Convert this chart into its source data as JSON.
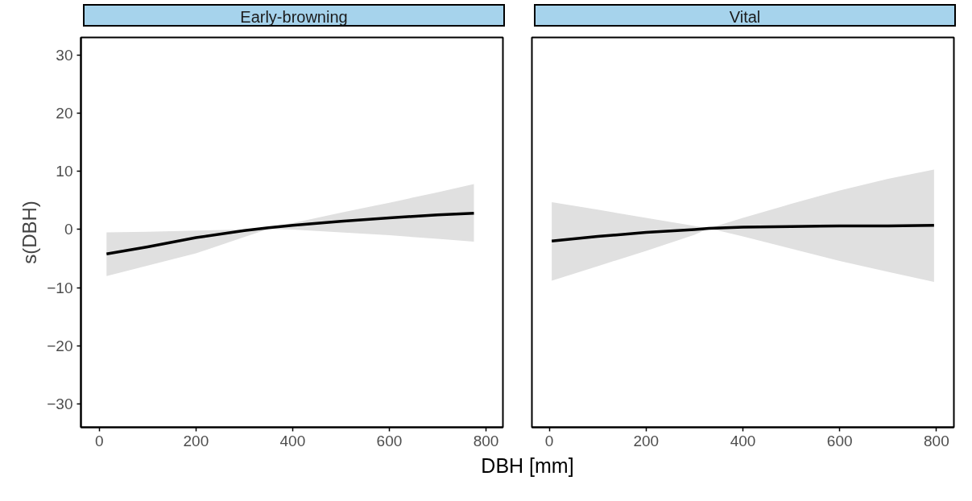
{
  "chart_data": [
    {
      "type": "line",
      "title": "Early-browning",
      "xlabel": "DBH [mm]",
      "ylabel": "s(DBH)",
      "x": [
        15,
        100,
        200,
        300,
        350,
        400,
        500,
        600,
        700,
        775
      ],
      "series": [
        {
          "color": "#000000",
          "values": [
            -4.2,
            -3.0,
            -1.4,
            -0.2,
            0.3,
            0.7,
            1.4,
            2.0,
            2.5,
            2.8
          ],
          "lower": [
            -8.0,
            -6.2,
            -4.1,
            -1.3,
            0.1,
            0.0,
            -0.5,
            -1.0,
            -1.6,
            -2.1
          ],
          "upper": [
            -0.5,
            -0.4,
            -0.2,
            0.0,
            0.4,
            1.1,
            2.9,
            4.6,
            6.4,
            7.8
          ]
        }
      ],
      "xlim": [
        -38,
        835
      ],
      "ylim": [
        -34,
        33
      ],
      "xticks": [
        0,
        200,
        400,
        600,
        800
      ],
      "yticks": [
        -30,
        -20,
        -10,
        0,
        10,
        20,
        30
      ],
      "grid": false
    },
    {
      "type": "line",
      "title": "Vital",
      "x": [
        5,
        100,
        200,
        300,
        330,
        400,
        500,
        600,
        700,
        795
      ],
      "series": [
        {
          "color": "#000000",
          "values": [
            -2.0,
            -1.2,
            -0.5,
            0.0,
            0.2,
            0.4,
            0.5,
            0.6,
            0.6,
            0.7
          ],
          "lower": [
            -8.8,
            -6.3,
            -3.7,
            -0.9,
            0.2,
            -1.2,
            -3.3,
            -5.4,
            -7.3,
            -9.0
          ],
          "upper": [
            4.7,
            3.4,
            2.0,
            0.6,
            0.2,
            2.0,
            4.4,
            6.7,
            8.7,
            10.3
          ]
        }
      ],
      "xlim": [
        -36,
        836
      ],
      "ylim": [
        -34,
        33
      ],
      "xticks": [
        0,
        200,
        400,
        600,
        800
      ],
      "yticks": [
        -30,
        -20,
        -10,
        0,
        10,
        20,
        30
      ],
      "tick_labels": "x",
      "grid": false
    }
  ]
}
